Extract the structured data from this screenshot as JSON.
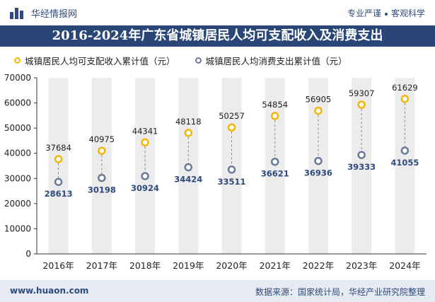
{
  "header": {
    "brand": "华经情报网",
    "tagline_1": "专业严谨",
    "tagline_2": "客观科学"
  },
  "title": "2016-2024年广东省城镇居民人均可支配收入及消费支出",
  "footer": {
    "site": "www.huaon.com",
    "source": "数据来源：国家统计局，华经产业研究院整理"
  },
  "colors": {
    "navy": "#2a4676",
    "income": "#f2b705",
    "consumption": "#6a7a99",
    "band": "#ececec"
  },
  "chart_data": {
    "type": "scatter",
    "title": "2016-2024年广东省城镇居民人均可支配收入及消费支出",
    "categories": [
      "2016年",
      "2017年",
      "2018年",
      "2019年",
      "2020年",
      "2021年",
      "2022年",
      "2023年",
      "2024年"
    ],
    "series": [
      {
        "name": "城镇居民人均可支配收入累计值（元）",
        "values": [
          37684,
          40975,
          44341,
          48118,
          50257,
          54854,
          56905,
          59307,
          61629
        ]
      },
      {
        "name": "城镇居民人均消费支出累计值（元）",
        "values": [
          28613,
          30198,
          30924,
          34424,
          33511,
          36621,
          36936,
          39333,
          41055
        ]
      }
    ],
    "ylim": [
      0,
      70000
    ],
    "yticks": [
      0,
      10000,
      20000,
      30000,
      40000,
      50000,
      60000,
      70000
    ],
    "xlabel": "",
    "ylabel": "",
    "legend_position": "top-left"
  }
}
